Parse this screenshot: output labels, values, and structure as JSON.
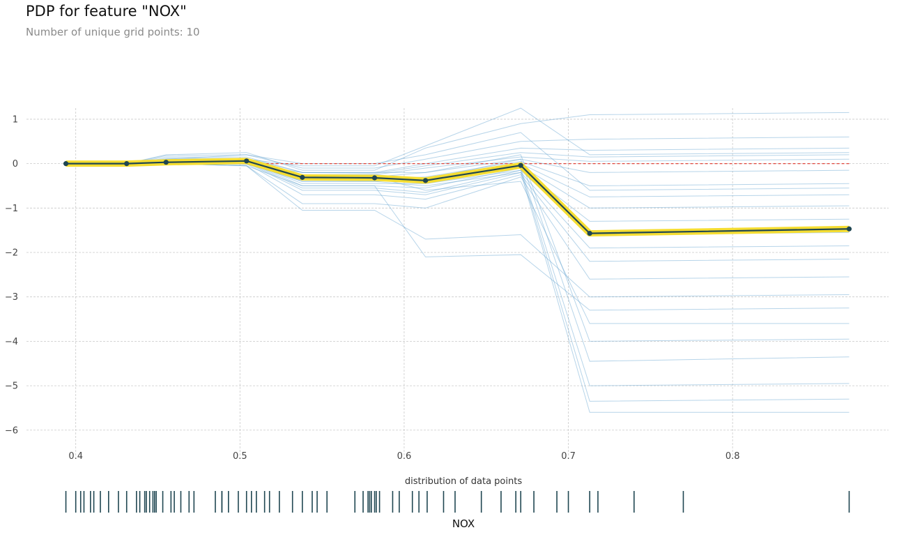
{
  "chart_data": {
    "type": "line",
    "title": "PDP for feature \"NOX\"",
    "subtitle": "Number of unique grid points: 10",
    "xlabel": "NOX",
    "ylabel": "",
    "distribution_title": "distribution of data points",
    "xlim": [
      0.37,
      0.895
    ],
    "ylim": [
      -6.6,
      1.25
    ],
    "xticks": [
      0.4,
      0.5,
      0.6,
      0.7,
      0.8
    ],
    "xtick_labels": [
      "0.4",
      "0.5",
      "0.6",
      "0.7",
      "0.8"
    ],
    "yticks": [
      1,
      0,
      -1,
      -2,
      -3,
      -4,
      -5,
      -6
    ],
    "ytick_labels": [
      "1",
      "0",
      "−1",
      "−2",
      "−3",
      "−4",
      "−5",
      "−6"
    ],
    "grid": true,
    "x": [
      0.394,
      0.431,
      0.455,
      0.504,
      0.538,
      0.582,
      0.613,
      0.671,
      0.713,
      0.871
    ],
    "series": [
      {
        "values": [
          0.0,
          0.0,
          0.03,
          0.06,
          -0.31,
          -0.32,
          -0.38,
          -0.04,
          -1.57,
          -1.47
        ]
      }
    ],
    "ice_lines_sample": [
      [
        0.0,
        0.0,
        0.2,
        0.25,
        -0.15,
        -0.15,
        0.35,
        0.9,
        1.1,
        1.15
      ],
      [
        0.0,
        0.0,
        0.18,
        0.2,
        -0.1,
        -0.1,
        0.1,
        0.5,
        0.55,
        0.6
      ],
      [
        0.0,
        0.0,
        0.15,
        0.15,
        -0.2,
        -0.2,
        0.0,
        0.35,
        0.3,
        0.35
      ],
      [
        0.0,
        0.0,
        0.12,
        0.12,
        -0.2,
        -0.22,
        -0.05,
        0.25,
        0.15,
        0.2
      ],
      [
        0.0,
        0.0,
        0.1,
        0.1,
        -0.25,
        -0.25,
        -0.1,
        0.15,
        0.05,
        0.1
      ],
      [
        0.0,
        0.0,
        0.08,
        0.1,
        -0.3,
        -0.3,
        -0.2,
        0.1,
        -0.2,
        -0.15
      ],
      [
        0.0,
        0.0,
        0.05,
        0.08,
        -0.35,
        -0.35,
        -0.3,
        0.05,
        -0.5,
        -0.45
      ],
      [
        0.0,
        0.0,
        0.05,
        0.06,
        -0.4,
        -0.4,
        -0.35,
        0.0,
        -0.75,
        -0.7
      ],
      [
        0.0,
        0.0,
        0.03,
        0.05,
        -0.45,
        -0.45,
        -0.45,
        -0.05,
        -1.0,
        -0.95
      ],
      [
        0.0,
        0.0,
        0.02,
        0.04,
        -0.5,
        -0.5,
        -0.55,
        -0.1,
        -1.3,
        -1.25
      ],
      [
        0.0,
        0.0,
        0.02,
        0.03,
        -0.55,
        -0.55,
        -0.65,
        -0.15,
        -1.6,
        -1.55
      ],
      [
        0.0,
        0.0,
        0.01,
        0.02,
        -0.6,
        -0.6,
        -0.7,
        -0.2,
        -1.9,
        -1.85
      ],
      [
        0.0,
        0.0,
        0.0,
        0.0,
        -0.7,
        -0.7,
        -0.8,
        -0.25,
        -2.2,
        -2.15
      ],
      [
        0.0,
        0.0,
        0.0,
        -0.05,
        -0.9,
        -0.9,
        -1.0,
        -0.3,
        -2.6,
        -2.55
      ],
      [
        0.0,
        0.0,
        0.0,
        -0.05,
        -1.05,
        -1.05,
        -1.7,
        -1.6,
        -3.0,
        -2.95
      ],
      [
        0.0,
        0.0,
        0.0,
        -0.05,
        -0.5,
        -0.5,
        -2.1,
        -2.05,
        -3.3,
        -3.25
      ],
      [
        0.0,
        0.0,
        0.0,
        -0.02,
        -0.3,
        -0.3,
        -0.6,
        -0.4,
        -3.6,
        -3.6
      ],
      [
        0.0,
        0.0,
        0.0,
        0.0,
        -0.2,
        -0.2,
        -0.2,
        0.2,
        -4.0,
        -3.95
      ],
      [
        0.0,
        0.0,
        0.0,
        0.0,
        -0.25,
        -0.25,
        -0.35,
        0.1,
        -4.45,
        -4.35
      ],
      [
        0.0,
        0.0,
        0.0,
        0.0,
        -0.3,
        -0.3,
        -0.4,
        -0.1,
        -5.0,
        -4.95
      ],
      [
        0.0,
        0.0,
        0.0,
        0.0,
        -0.35,
        -0.35,
        -0.45,
        -0.15,
        -5.35,
        -5.3
      ],
      [
        0.0,
        0.0,
        0.0,
        0.0,
        -0.4,
        -0.4,
        -0.5,
        -0.2,
        -5.6,
        -5.6
      ],
      [
        0.0,
        0.0,
        0.05,
        0.1,
        -0.05,
        -0.05,
        0.4,
        1.25,
        0.2,
        0.25
      ],
      [
        0.0,
        0.0,
        0.1,
        0.2,
        0.0,
        0.0,
        0.2,
        0.7,
        -0.6,
        -0.55
      ]
    ],
    "zero_line": 0,
    "distribution_x": [
      0.394,
      0.4,
      0.403,
      0.405,
      0.409,
      0.411,
      0.415,
      0.42,
      0.426,
      0.431,
      0.437,
      0.439,
      0.442,
      0.443,
      0.445,
      0.447,
      0.448,
      0.449,
      0.453,
      0.458,
      0.46,
      0.464,
      0.469,
      0.472,
      0.485,
      0.489,
      0.489,
      0.493,
      0.499,
      0.504,
      0.507,
      0.51,
      0.515,
      0.518,
      0.524,
      0.532,
      0.538,
      0.544,
      0.547,
      0.553,
      0.57,
      0.575,
      0.578,
      0.579,
      0.58,
      0.582,
      0.583,
      0.585,
      0.593,
      0.597,
      0.605,
      0.609,
      0.614,
      0.624,
      0.631,
      0.647,
      0.659,
      0.668,
      0.671,
      0.679,
      0.693,
      0.7,
      0.713,
      0.718,
      0.74,
      0.77,
      0.871
    ]
  }
}
